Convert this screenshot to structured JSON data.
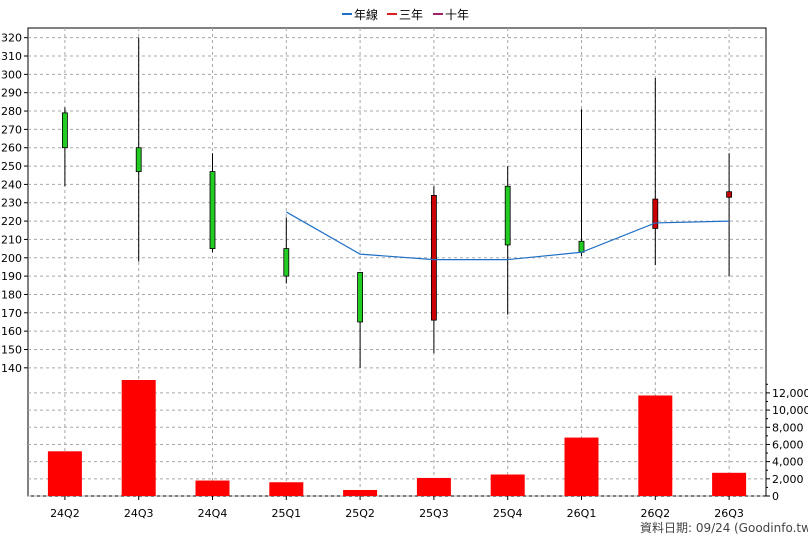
{
  "chart_data": {
    "type": "candlestick",
    "legend": {
      "placement": "top-center",
      "items": [
        {
          "label": "年線",
          "color": "#1f6fc6"
        },
        {
          "label": "三年",
          "color": "#e02020"
        },
        {
          "label": "十年",
          "color": "#a0206a"
        }
      ]
    },
    "categories": [
      "24Q2",
      "24Q3",
      "24Q4",
      "25Q1",
      "25Q2",
      "25Q3",
      "25Q4",
      "26Q1",
      "26Q2",
      "26Q3"
    ],
    "price_axis": {
      "ylim": [
        135,
        322
      ],
      "ticks": [
        140,
        150,
        160,
        170,
        180,
        190,
        200,
        210,
        220,
        230,
        240,
        250,
        260,
        270,
        280,
        290,
        300,
        310,
        320
      ]
    },
    "ohlc": [
      {
        "open": 279,
        "high": 282,
        "low": 239,
        "close": 260
      },
      {
        "open": 260,
        "high": 320,
        "low": 198,
        "close": 247
      },
      {
        "open": 247,
        "high": 257,
        "low": 203,
        "close": 205
      },
      {
        "open": 205,
        "high": 222,
        "low": 186,
        "close": 190
      },
      {
        "open": 192,
        "high": 192,
        "low": 140,
        "close": 165
      },
      {
        "open": 166,
        "high": 239,
        "low": 148,
        "close": 234
      },
      {
        "open": 239,
        "high": 250,
        "low": 169,
        "close": 207
      },
      {
        "open": 209,
        "high": 281,
        "low": 201,
        "close": 203
      },
      {
        "open": 216,
        "high": 298,
        "low": 196,
        "close": 232
      },
      {
        "open": 233,
        "high": 257,
        "low": 190,
        "close": 236
      }
    ],
    "up_color": "#cc0000",
    "down_color": "#22cc22",
    "annual_line": {
      "label": "年線",
      "color": "#1f6fc6",
      "values": [
        null,
        null,
        null,
        225,
        202,
        199,
        199,
        203,
        219,
        220
      ]
    },
    "volume_axis": {
      "ylim": [
        0,
        13500
      ],
      "ticks": [
        "0",
        "2,000",
        "4,000",
        "6,000",
        "8,000",
        "10,000",
        "12,000"
      ],
      "tick_values": [
        0,
        2000,
        4000,
        6000,
        8000,
        10000,
        12000
      ]
    },
    "volume": [
      5200,
      13500,
      1800,
      1600,
      700,
      2100,
      2500,
      6800,
      11700,
      2700
    ],
    "volume_color": "#ff0000",
    "grid": true
  },
  "footer": {
    "date_text": "資料日期: 09/24",
    "source_text": "(Goodinfo.tw)"
  }
}
